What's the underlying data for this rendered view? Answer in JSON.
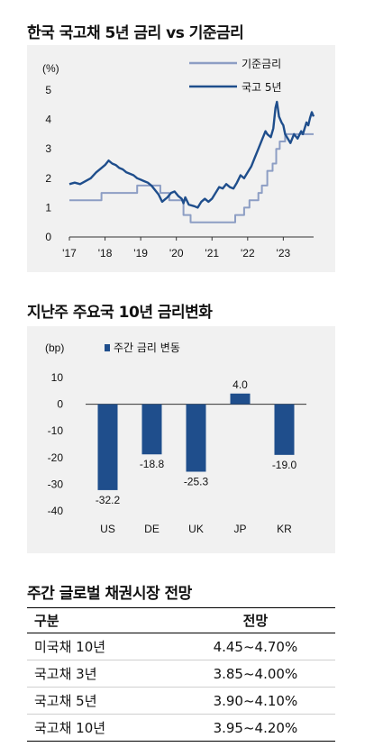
{
  "chart_data": [
    {
      "type": "line",
      "title": "한국 국고채 5년 금리 vs 기준금리",
      "ylabel": "(%)",
      "ylim": [
        0,
        5
      ],
      "yticks": [
        0,
        1,
        2,
        3,
        4,
        5
      ],
      "xticks": [
        "'17",
        "'18",
        "'19",
        "'20",
        "'21",
        "'22",
        "'23"
      ],
      "xlim": [
        2017.0,
        2023.85
      ],
      "legend_position": "top-right",
      "series": [
        {
          "name": "기준금리",
          "color": "#8d9ec4",
          "step": true,
          "points": [
            [
              2017.0,
              1.25
            ],
            [
              2017.9,
              1.5
            ],
            [
              2018.9,
              1.75
            ],
            [
              2019.55,
              1.5
            ],
            [
              2019.8,
              1.25
            ],
            [
              2020.2,
              0.75
            ],
            [
              2020.4,
              0.5
            ],
            [
              2021.65,
              0.75
            ],
            [
              2021.9,
              1.0
            ],
            [
              2022.05,
              1.25
            ],
            [
              2022.3,
              1.5
            ],
            [
              2022.4,
              1.75
            ],
            [
              2022.55,
              2.25
            ],
            [
              2022.7,
              2.5
            ],
            [
              2022.8,
              3.0
            ],
            [
              2022.9,
              3.25
            ],
            [
              2023.05,
              3.5
            ],
            [
              2023.85,
              3.5
            ]
          ]
        },
        {
          "name": "국고 5년",
          "color": "#1f4e8c",
          "step": false,
          "points": [
            [
              2017.0,
              1.8
            ],
            [
              2017.15,
              1.85
            ],
            [
              2017.3,
              1.8
            ],
            [
              2017.45,
              1.9
            ],
            [
              2017.6,
              2.0
            ],
            [
              2017.75,
              2.2
            ],
            [
              2017.9,
              2.35
            ],
            [
              2018.0,
              2.45
            ],
            [
              2018.1,
              2.6
            ],
            [
              2018.2,
              2.5
            ],
            [
              2018.3,
              2.45
            ],
            [
              2018.4,
              2.35
            ],
            [
              2018.5,
              2.3
            ],
            [
              2018.6,
              2.2
            ],
            [
              2018.7,
              2.15
            ],
            [
              2018.8,
              2.1
            ],
            [
              2018.9,
              2.0
            ],
            [
              2019.0,
              1.95
            ],
            [
              2019.1,
              1.9
            ],
            [
              2019.2,
              1.85
            ],
            [
              2019.3,
              1.75
            ],
            [
              2019.4,
              1.6
            ],
            [
              2019.5,
              1.45
            ],
            [
              2019.6,
              1.2
            ],
            [
              2019.65,
              1.25
            ],
            [
              2019.75,
              1.35
            ],
            [
              2019.85,
              1.5
            ],
            [
              2019.95,
              1.55
            ],
            [
              2020.05,
              1.4
            ],
            [
              2020.15,
              1.3
            ],
            [
              2020.2,
              1.15
            ],
            [
              2020.25,
              1.35
            ],
            [
              2020.35,
              1.1
            ],
            [
              2020.5,
              1.05
            ],
            [
              2020.6,
              1.0
            ],
            [
              2020.7,
              1.2
            ],
            [
              2020.8,
              1.3
            ],
            [
              2020.9,
              1.2
            ],
            [
              2021.0,
              1.3
            ],
            [
              2021.1,
              1.5
            ],
            [
              2021.2,
              1.7
            ],
            [
              2021.3,
              1.65
            ],
            [
              2021.4,
              1.8
            ],
            [
              2021.5,
              1.7
            ],
            [
              2021.6,
              1.65
            ],
            [
              2021.7,
              1.85
            ],
            [
              2021.8,
              2.1
            ],
            [
              2021.9,
              2.0
            ],
            [
              2022.0,
              2.2
            ],
            [
              2022.1,
              2.4
            ],
            [
              2022.2,
              2.7
            ],
            [
              2022.3,
              3.0
            ],
            [
              2022.4,
              3.3
            ],
            [
              2022.5,
              3.6
            ],
            [
              2022.55,
              3.5
            ],
            [
              2022.65,
              3.4
            ],
            [
              2022.72,
              3.7
            ],
            [
              2022.78,
              4.4
            ],
            [
              2022.82,
              4.6
            ],
            [
              2022.88,
              4.1
            ],
            [
              2022.95,
              3.9
            ],
            [
              2023.0,
              3.8
            ],
            [
              2023.05,
              3.5
            ],
            [
              2023.15,
              3.3
            ],
            [
              2023.2,
              3.2
            ],
            [
              2023.3,
              3.5
            ],
            [
              2023.4,
              3.35
            ],
            [
              2023.5,
              3.6
            ],
            [
              2023.55,
              3.5
            ],
            [
              2023.6,
              3.7
            ],
            [
              2023.65,
              3.9
            ],
            [
              2023.7,
              3.8
            ],
            [
              2023.75,
              4.05
            ],
            [
              2023.8,
              4.25
            ],
            [
              2023.85,
              4.1
            ]
          ]
        }
      ]
    },
    {
      "type": "bar",
      "title": "지난주 주요국 10년 금리변화",
      "ylabel": "(bp)",
      "ylim": [
        -40,
        10
      ],
      "yticks": [
        10,
        0,
        -10,
        -20,
        -30,
        -40
      ],
      "legend_position": "top-left",
      "categories": [
        "US",
        "DE",
        "UK",
        "JP",
        "KR"
      ],
      "series": [
        {
          "name": "주간 금리 변동",
          "color": "#1f4e8c",
          "values": [
            -32.2,
            -18.8,
            -25.3,
            4.0,
            -19.0
          ],
          "labels": [
            "-32.2",
            "-18.8",
            "-25.3",
            "4.0",
            "-19.0"
          ]
        }
      ]
    }
  ],
  "table": {
    "title": "주간 글로벌 채권시장 전망",
    "headers": [
      "구분",
      "전망"
    ],
    "rows": [
      [
        "미국채 10년",
        "4.45~4.70%"
      ],
      [
        "국고채 3년",
        "3.85~4.00%"
      ],
      [
        "국고채 5년",
        "3.90~4.10%"
      ],
      [
        "국고채 10년",
        "3.95~4.20%"
      ]
    ]
  }
}
